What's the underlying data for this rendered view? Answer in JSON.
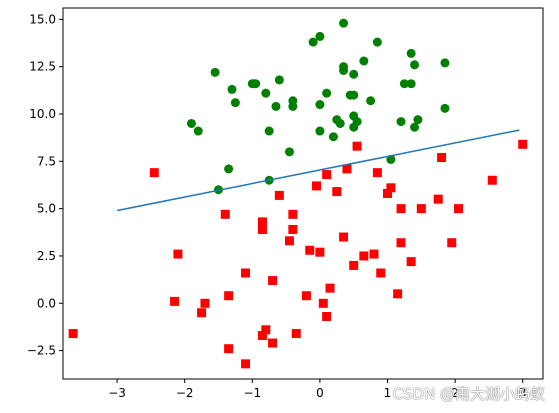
{
  "chart_data": {
    "type": "scatter",
    "xlim": [
      -3.8,
      3.3
    ],
    "ylim": [
      -4.0,
      15.6
    ],
    "x_ticks": [
      -3,
      -2,
      -1,
      0,
      1,
      2,
      3
    ],
    "y_ticks": [
      -2.5,
      0.0,
      2.5,
      5.0,
      7.5,
      10.0,
      12.5,
      15.0
    ],
    "x_tick_labels": [
      "−3",
      "−2",
      "−1",
      "0",
      "1",
      "2",
      "3"
    ],
    "y_tick_labels": [
      "−2.5",
      "0.0",
      "2.5",
      "5.0",
      "7.5",
      "10.0",
      "12.5",
      "15.0"
    ],
    "grid": false,
    "legend": "none",
    "series": [
      {
        "marker": "circle",
        "color": "#008000",
        "points": [
          [
            0.35,
            14.8
          ],
          [
            -0.1,
            13.8
          ],
          [
            0.0,
            14.1
          ],
          [
            0.85,
            13.8
          ],
          [
            1.35,
            13.2
          ],
          [
            -1.55,
            12.2
          ],
          [
            0.35,
            12.3
          ],
          [
            0.35,
            12.5
          ],
          [
            0.65,
            12.8
          ],
          [
            1.4,
            12.6
          ],
          [
            1.85,
            12.7
          ],
          [
            0.5,
            12.1
          ],
          [
            -1.0,
            11.6
          ],
          [
            -0.95,
            11.6
          ],
          [
            -0.6,
            11.8
          ],
          [
            1.25,
            11.6
          ],
          [
            1.35,
            11.6
          ],
          [
            -1.3,
            11.3
          ],
          [
            -0.8,
            11.1
          ],
          [
            0.1,
            11.1
          ],
          [
            0.45,
            11.0
          ],
          [
            0.5,
            11.0
          ],
          [
            -0.4,
            10.7
          ],
          [
            0.75,
            10.7
          ],
          [
            -1.25,
            10.6
          ],
          [
            -0.65,
            10.4
          ],
          [
            -0.4,
            10.4
          ],
          [
            0.0,
            10.5
          ],
          [
            0.5,
            9.9
          ],
          [
            1.85,
            10.3
          ],
          [
            -1.9,
            9.5
          ],
          [
            -1.8,
            9.1
          ],
          [
            0.25,
            9.7
          ],
          [
            0.55,
            9.6
          ],
          [
            0.3,
            9.5
          ],
          [
            1.2,
            9.6
          ],
          [
            1.45,
            9.7
          ],
          [
            1.4,
            9.3
          ],
          [
            -0.75,
            9.1
          ],
          [
            0.0,
            9.1
          ],
          [
            0.5,
            9.3
          ],
          [
            0.2,
            8.8
          ],
          [
            -0.45,
            8.0
          ],
          [
            1.05,
            7.6
          ],
          [
            -1.35,
            7.1
          ],
          [
            -0.75,
            6.5
          ],
          [
            -1.5,
            6.0
          ]
        ]
      },
      {
        "marker": "square",
        "color": "#ff0000",
        "points": [
          [
            0.55,
            8.3
          ],
          [
            3.0,
            8.4
          ],
          [
            1.8,
            7.7
          ],
          [
            -2.45,
            6.9
          ],
          [
            0.1,
            6.8
          ],
          [
            0.4,
            7.1
          ],
          [
            0.85,
            6.9
          ],
          [
            -0.05,
            6.2
          ],
          [
            1.05,
            6.1
          ],
          [
            2.55,
            6.5
          ],
          [
            1.0,
            5.8
          ],
          [
            -0.6,
            5.7
          ],
          [
            0.25,
            5.9
          ],
          [
            1.2,
            5.0
          ],
          [
            1.5,
            5.0
          ],
          [
            1.75,
            5.5
          ],
          [
            2.05,
            5.0
          ],
          [
            -1.4,
            4.7
          ],
          [
            -0.4,
            4.7
          ],
          [
            -0.85,
            4.3
          ],
          [
            -0.85,
            3.9
          ],
          [
            -0.4,
            3.9
          ],
          [
            0.35,
            3.5
          ],
          [
            -0.45,
            3.3
          ],
          [
            1.2,
            3.2
          ],
          [
            1.95,
            3.2
          ],
          [
            -0.15,
            2.8
          ],
          [
            0.0,
            2.7
          ],
          [
            0.8,
            2.6
          ],
          [
            0.65,
            2.5
          ],
          [
            -2.1,
            2.6
          ],
          [
            1.35,
            2.2
          ],
          [
            0.5,
            2.0
          ],
          [
            0.9,
            1.6
          ],
          [
            -1.1,
            1.6
          ],
          [
            -0.7,
            1.2
          ],
          [
            0.15,
            0.8
          ],
          [
            -1.35,
            0.4
          ],
          [
            -0.2,
            0.4
          ],
          [
            1.15,
            0.5
          ],
          [
            -2.15,
            0.1
          ],
          [
            -1.7,
            0.0
          ],
          [
            0.05,
            0.0
          ],
          [
            -1.75,
            -0.5
          ],
          [
            0.1,
            -0.7
          ],
          [
            -3.65,
            -1.6
          ],
          [
            -0.85,
            -1.7
          ],
          [
            -0.8,
            -1.4
          ],
          [
            -0.35,
            -1.6
          ],
          [
            -0.7,
            -2.1
          ],
          [
            -1.35,
            -2.4
          ],
          [
            -1.1,
            -3.2
          ]
        ]
      },
      {
        "marker": "line",
        "color": "#1f77b4",
        "points": [
          [
            -3.0,
            4.9
          ],
          [
            2.95,
            9.15
          ]
        ]
      }
    ]
  },
  "watermark": "CSDN @南大湖小蚂蚁"
}
